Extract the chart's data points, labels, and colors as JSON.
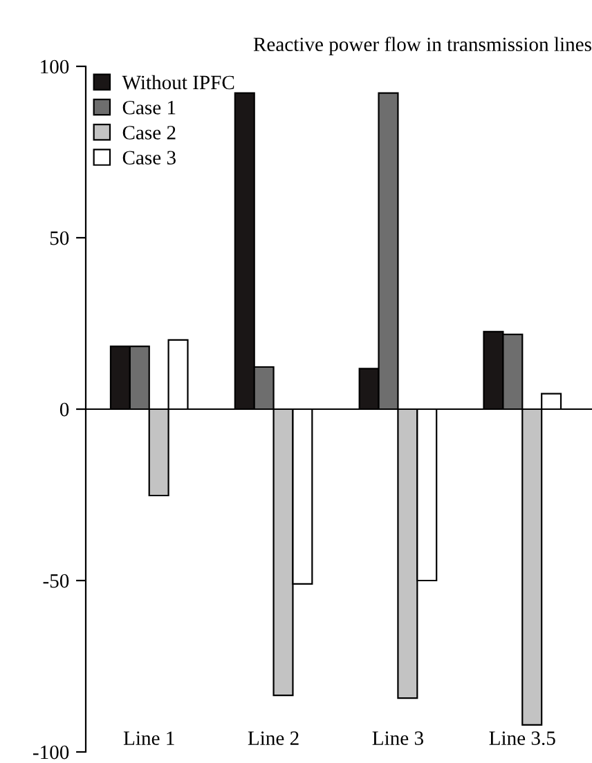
{
  "chart_data": {
    "type": "bar",
    "title": "Reactive power flow in transmission lines",
    "categories": [
      "Line 1",
      "Line 2",
      "Line 3",
      "Line 3.5"
    ],
    "series": [
      {
        "name": "Without IPFC",
        "color": "#1a1616",
        "values": [
          18.3,
          92.2,
          11.8,
          22.6
        ]
      },
      {
        "name": "Case 1",
        "color": "#6e6e6e",
        "values": [
          18.3,
          12.3,
          92.2,
          21.8
        ]
      },
      {
        "name": "Case 2",
        "color": "#c3c3c3",
        "values": [
          -25.2,
          -83.5,
          -84.3,
          -92.1
        ]
      },
      {
        "name": "Case 3",
        "color": "#ffffff",
        "values": [
          20.2,
          -51,
          -50,
          4.5
        ]
      }
    ],
    "ylim": [
      -100,
      100
    ],
    "yticks": [
      -100,
      -50,
      0,
      50,
      100
    ],
    "ref_lines": [
      {
        "axis": "y",
        "value": 0,
        "color": "#000000"
      }
    ],
    "legend": "top left"
  }
}
